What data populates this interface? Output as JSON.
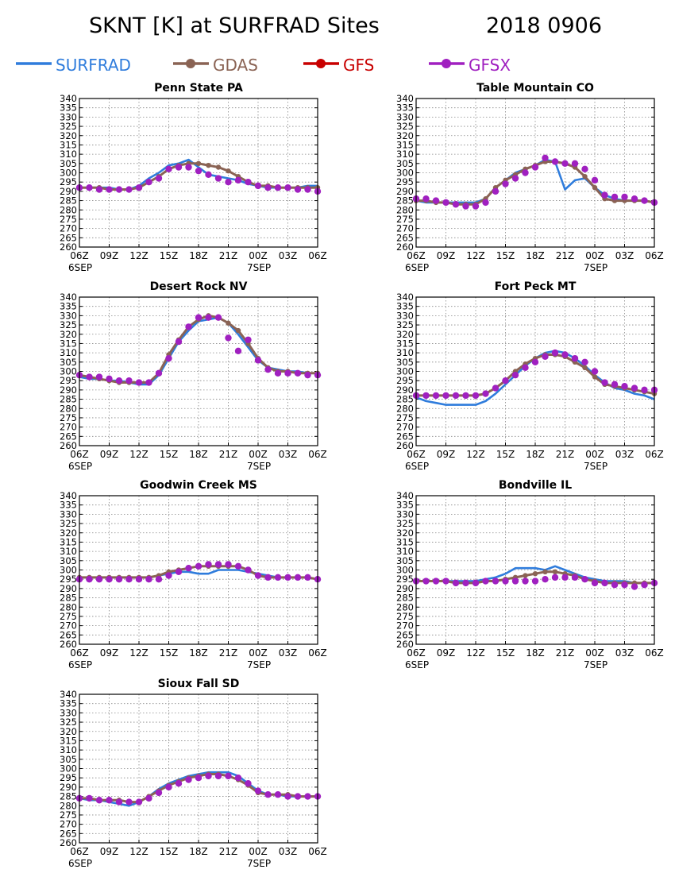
{
  "page": {
    "title": "SKNT [K] at SURFRAD Sites",
    "date": "2018  0906"
  },
  "legend": [
    {
      "name": "SURFRAD",
      "color": "#2f7cdc",
      "marker": "none"
    },
    {
      "name": "GDAS",
      "color": "#8a6354",
      "marker": "circle"
    },
    {
      "name": "GFS",
      "color": "#c80000",
      "marker": "circle"
    },
    {
      "name": "GFSX",
      "color": "#a020c0",
      "marker": "circle"
    }
  ],
  "axes": {
    "ylim": [
      260,
      340
    ],
    "yticks": [
      260,
      265,
      270,
      275,
      280,
      285,
      290,
      295,
      300,
      305,
      310,
      315,
      320,
      325,
      330,
      335,
      340
    ],
    "xlim": [
      0,
      24
    ],
    "xticks": [
      0,
      3,
      6,
      9,
      12,
      15,
      18,
      21,
      24
    ],
    "xtick_labels": [
      "06Z",
      "09Z",
      "12Z",
      "15Z",
      "18Z",
      "21Z",
      "00Z",
      "03Z",
      "06Z"
    ],
    "date_labels": [
      {
        "x": 0,
        "text": "6SEP"
      },
      {
        "x": 18,
        "text": "7SEP"
      }
    ],
    "grid": true
  },
  "chart_data": [
    {
      "type": "line",
      "title": "Penn State PA",
      "x_hours": [
        0,
        1,
        2,
        3,
        4,
        5,
        6,
        7,
        8,
        9,
        10,
        11,
        12,
        13,
        14,
        15,
        16,
        17,
        18,
        19,
        20,
        21,
        22,
        23,
        24
      ],
      "series": [
        {
          "name": "SURFRAD",
          "values": [
            292,
            292,
            292,
            292,
            291,
            291,
            293,
            297,
            300,
            304,
            305,
            307,
            303,
            299,
            298,
            297,
            296,
            294,
            293,
            292,
            292,
            292,
            292,
            293,
            293
          ]
        },
        {
          "name": "GDAS",
          "values": [
            292,
            292,
            292,
            291,
            291,
            291,
            292,
            295,
            298,
            302,
            304,
            305,
            305,
            304,
            303,
            301,
            298,
            295,
            293,
            293,
            292,
            292,
            292,
            292,
            292
          ]
        },
        {
          "name": "GFSX",
          "values": [
            292,
            292,
            291,
            291,
            291,
            291,
            292,
            295,
            297,
            302,
            303,
            303,
            301,
            299,
            297,
            295,
            296,
            295,
            293,
            292,
            292,
            292,
            291,
            291,
            290
          ]
        }
      ]
    },
    {
      "type": "line",
      "title": "Table Mountain CO",
      "x_hours": [
        0,
        1,
        2,
        3,
        4,
        5,
        6,
        7,
        8,
        9,
        10,
        11,
        12,
        13,
        14,
        15,
        16,
        17,
        18,
        19,
        20,
        21,
        22,
        23,
        24
      ],
      "series": [
        {
          "name": "SURFRAD",
          "values": [
            285,
            284,
            284,
            284,
            284,
            284,
            284,
            286,
            292,
            296,
            300,
            302,
            304,
            307,
            306,
            291,
            296,
            297,
            292,
            288,
            286,
            285,
            285,
            285,
            284
          ]
        },
        {
          "name": "GDAS",
          "values": [
            285,
            285,
            284,
            284,
            283,
            283,
            283,
            286,
            292,
            296,
            299,
            302,
            304,
            306,
            306,
            305,
            303,
            298,
            292,
            286,
            285,
            285,
            285,
            285,
            284
          ]
        },
        {
          "name": "GFSX",
          "values": [
            286,
            286,
            285,
            284,
            283,
            282,
            282,
            284,
            290,
            294,
            297,
            300,
            303,
            308,
            306,
            305,
            305,
            302,
            296,
            288,
            287,
            287,
            286,
            285,
            284
          ]
        }
      ]
    },
    {
      "type": "line",
      "title": "Desert Rock NV",
      "x_hours": [
        0,
        1,
        2,
        3,
        4,
        5,
        6,
        7,
        8,
        9,
        10,
        11,
        12,
        13,
        14,
        15,
        16,
        17,
        18,
        19,
        20,
        21,
        22,
        23,
        24
      ],
      "series": [
        {
          "name": "SURFRAD",
          "values": [
            297,
            296,
            296,
            295,
            295,
            294,
            293,
            293,
            298,
            307,
            316,
            322,
            327,
            328,
            329,
            326,
            320,
            313,
            306,
            302,
            301,
            300,
            300,
            299,
            299
          ]
        },
        {
          "name": "GDAS",
          "values": [
            298,
            297,
            296,
            295,
            294,
            294,
            294,
            294,
            299,
            309,
            317,
            324,
            328,
            330,
            329,
            326,
            322,
            315,
            307,
            302,
            300,
            300,
            299,
            299,
            299
          ]
        },
        {
          "name": "GFSX",
          "values": [
            298,
            297,
            297,
            296,
            295,
            295,
            294,
            294,
            299,
            307,
            316,
            324,
            329,
            329,
            329,
            318,
            311,
            317,
            306,
            301,
            299,
            299,
            299,
            298,
            298
          ]
        }
      ]
    },
    {
      "type": "line",
      "title": "Fort Peck MT",
      "x_hours": [
        0,
        1,
        2,
        3,
        4,
        5,
        6,
        7,
        8,
        9,
        10,
        11,
        12,
        13,
        14,
        15,
        16,
        17,
        18,
        19,
        20,
        21,
        22,
        23,
        24
      ],
      "series": [
        {
          "name": "SURFRAD",
          "values": [
            286,
            284,
            283,
            282,
            282,
            282,
            282,
            284,
            288,
            293,
            298,
            303,
            307,
            310,
            311,
            310,
            307,
            303,
            298,
            294,
            291,
            290,
            288,
            287,
            285
          ]
        },
        {
          "name": "GDAS",
          "values": [
            287,
            287,
            287,
            287,
            287,
            287,
            287,
            288,
            291,
            295,
            300,
            304,
            307,
            309,
            309,
            308,
            305,
            302,
            297,
            293,
            292,
            291,
            290,
            289,
            288
          ]
        },
        {
          "name": "GFSX",
          "values": [
            287,
            287,
            287,
            287,
            287,
            287,
            287,
            288,
            291,
            295,
            298,
            302,
            305,
            308,
            310,
            309,
            307,
            305,
            300,
            294,
            293,
            292,
            291,
            290,
            290
          ]
        }
      ]
    },
    {
      "type": "line",
      "title": "Goodwin Creek MS",
      "x_hours": [
        0,
        1,
        2,
        3,
        4,
        5,
        6,
        7,
        8,
        9,
        10,
        11,
        12,
        13,
        14,
        15,
        16,
        17,
        18,
        19,
        20,
        21,
        22,
        23,
        24
      ],
      "series": [
        {
          "name": "SURFRAD",
          "values": [
            296,
            296,
            296,
            296,
            296,
            296,
            296,
            296,
            297,
            298,
            299,
            299,
            298,
            298,
            300,
            300,
            300,
            299,
            298,
            297,
            296,
            296,
            296,
            296,
            295
          ]
        },
        {
          "name": "GDAS",
          "values": [
            296,
            296,
            296,
            296,
            296,
            296,
            296,
            296,
            297,
            299,
            300,
            301,
            302,
            302,
            302,
            302,
            302,
            300,
            297,
            296,
            296,
            296,
            296,
            296,
            295
          ]
        },
        {
          "name": "GFSX",
          "values": [
            295,
            295,
            295,
            295,
            295,
            295,
            295,
            295,
            295,
            297,
            299,
            301,
            302,
            303,
            303,
            303,
            302,
            300,
            297,
            296,
            296,
            296,
            296,
            296,
            295
          ]
        }
      ]
    },
    {
      "type": "line",
      "title": "Bondville IL",
      "x_hours": [
        0,
        1,
        2,
        3,
        4,
        5,
        6,
        7,
        8,
        9,
        10,
        11,
        12,
        13,
        14,
        15,
        16,
        17,
        18,
        19,
        20,
        21,
        22,
        23,
        24
      ],
      "series": [
        {
          "name": "SURFRAD",
          "values": [
            294,
            294,
            294,
            294,
            294,
            294,
            294,
            295,
            296,
            298,
            301,
            301,
            301,
            300,
            302,
            300,
            298,
            296,
            295,
            294,
            294,
            294,
            293,
            293,
            293
          ]
        },
        {
          "name": "GDAS",
          "values": [
            294,
            294,
            294,
            294,
            293,
            293,
            293,
            294,
            294,
            295,
            296,
            297,
            298,
            299,
            299,
            298,
            297,
            295,
            294,
            293,
            293,
            293,
            293,
            293,
            293
          ]
        },
        {
          "name": "GFSX",
          "values": [
            294,
            294,
            294,
            294,
            293,
            293,
            293,
            294,
            294,
            294,
            294,
            294,
            294,
            295,
            296,
            296,
            296,
            295,
            293,
            293,
            292,
            292,
            291,
            292,
            293
          ]
        }
      ]
    },
    {
      "type": "line",
      "title": "Sioux Fall SD",
      "x_hours": [
        0,
        1,
        2,
        3,
        4,
        5,
        6,
        7,
        8,
        9,
        10,
        11,
        12,
        13,
        14,
        15,
        16,
        17,
        18,
        19,
        20,
        21,
        22,
        23,
        24
      ],
      "series": [
        {
          "name": "SURFRAD",
          "values": [
            284,
            283,
            283,
            282,
            281,
            280,
            282,
            285,
            289,
            292,
            294,
            296,
            297,
            298,
            298,
            298,
            296,
            292,
            288,
            286,
            286,
            285,
            285,
            285,
            285
          ]
        },
        {
          "name": "GDAS",
          "values": [
            284,
            284,
            283,
            283,
            283,
            282,
            282,
            285,
            288,
            291,
            293,
            295,
            296,
            297,
            297,
            296,
            294,
            291,
            287,
            286,
            286,
            286,
            285,
            285,
            285
          ]
        },
        {
          "name": "GFSX",
          "values": [
            284,
            284,
            283,
            283,
            282,
            282,
            282,
            284,
            287,
            290,
            292,
            294,
            295,
            296,
            296,
            296,
            295,
            292,
            288,
            286,
            286,
            285,
            285,
            285,
            285
          ]
        }
      ]
    }
  ]
}
